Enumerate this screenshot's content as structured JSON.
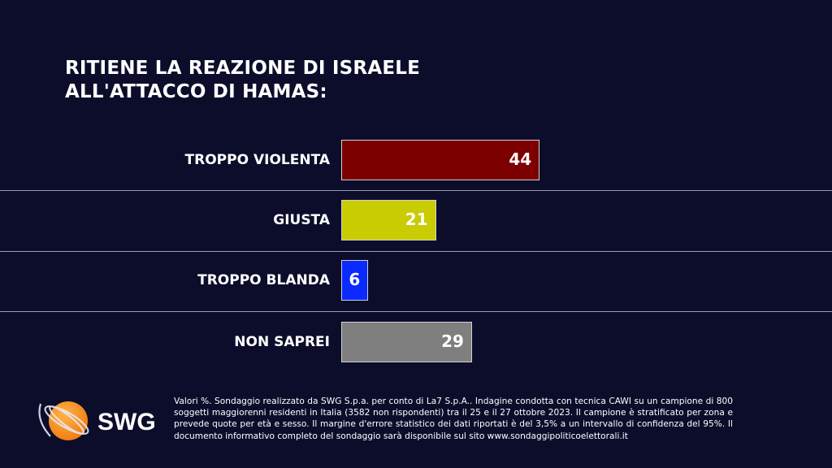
{
  "chart_data": {
    "type": "bar",
    "orientation": "horizontal",
    "title": "RITIENE LA REAZIONE DI ISRAELE ALL'ATTACCO DI HAMAS:",
    "title_lines": [
      "RITIENE LA REAZIONE DI ISRAELE",
      "ALL'ATTACCO DI HAMAS:"
    ],
    "categories": [
      "TROPPO VIOLENTA",
      "GIUSTA",
      "TROPPO BLANDA",
      "NON SAPREI"
    ],
    "values": [
      44,
      21,
      6,
      29
    ],
    "colors": [
      "#7c0000",
      "#c8cc00",
      "#0a2aff",
      "#7f7f7f"
    ],
    "unit": "%"
  },
  "footnote": "Valori %. Sondaggio realizzato da SWG S.p.a. per conto di La7 S.p.A.. Indagine condotta con tecnica CAWI su un campione di 800 soggetti maggiorenni residenti in Italia (3582 non rispondenti) tra il 25 e il 27 ottobre 2023. Il campione è stratificato per zona e prevede quote per età e sesso. Il margine d'errore statistico dei dati riportati è del 3,5% a un intervallo di confidenza del 95%. Il documento informativo completo del sondaggio sarà disponibile sul sito www.sondaggipoliticoelettorali.it",
  "logo": {
    "text": "SWG",
    "color": "#f58a1f"
  }
}
